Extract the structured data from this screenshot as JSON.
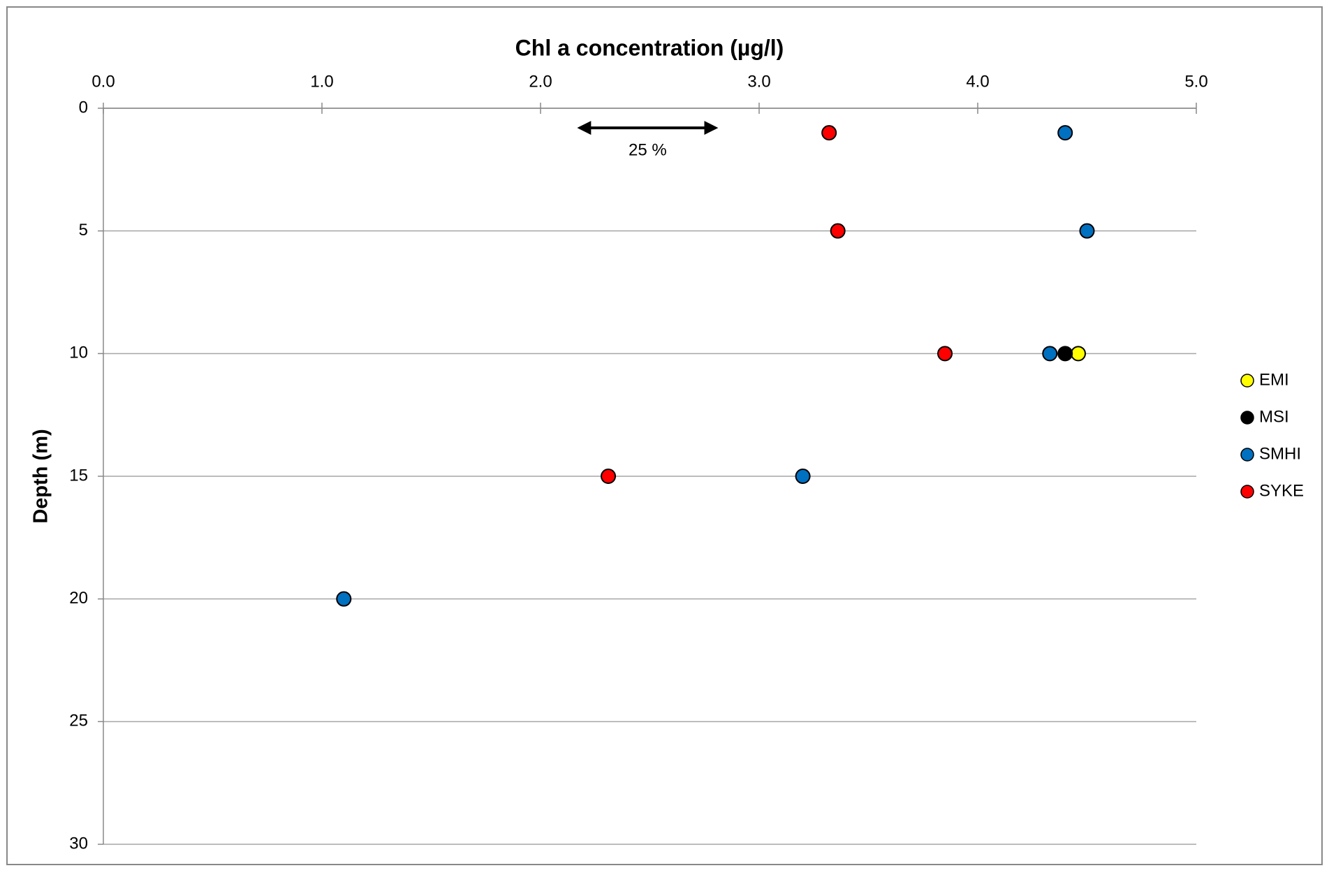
{
  "chart_data": {
    "type": "scatter",
    "title": "Chl a concentration (µg/l)",
    "y_label": "Depth (m)",
    "xlim": [
      0,
      5
    ],
    "xticks": [
      {
        "value": 0,
        "label": "0.0"
      },
      {
        "value": 1,
        "label": "1.0"
      },
      {
        "value": 2,
        "label": "2.0"
      },
      {
        "value": 3,
        "label": "3.0"
      },
      {
        "value": 4,
        "label": "4.0"
      },
      {
        "value": 5,
        "label": "5.0"
      }
    ],
    "ylim": [
      0,
      30
    ],
    "yticks": [
      0,
      5,
      10,
      15,
      20,
      25,
      30
    ],
    "y_inverted": true,
    "x_axis_position": "top",
    "grid": true,
    "legend": "right",
    "series": [
      {
        "name": "EMI",
        "color": "#ffff00",
        "x": [
          4.46
        ],
        "y": [
          10
        ]
      },
      {
        "name": "MSI",
        "color": "#000000",
        "x": [
          4.4
        ],
        "y": [
          10
        ]
      },
      {
        "name": "SMHI",
        "color": "#0070c0",
        "x": [
          4.4,
          4.5,
          4.33,
          3.2,
          1.1
        ],
        "y": [
          1,
          5,
          10,
          15,
          20
        ]
      },
      {
        "name": "SYKE",
        "color": "#ff0000",
        "x": [
          3.32,
          3.36,
          3.85,
          2.31
        ],
        "y": [
          1,
          5,
          10,
          15
        ]
      }
    ],
    "annotations": [
      {
        "text": "25 %",
        "x": [
          2.18,
          2.8
        ],
        "y": 0.8
      }
    ]
  }
}
